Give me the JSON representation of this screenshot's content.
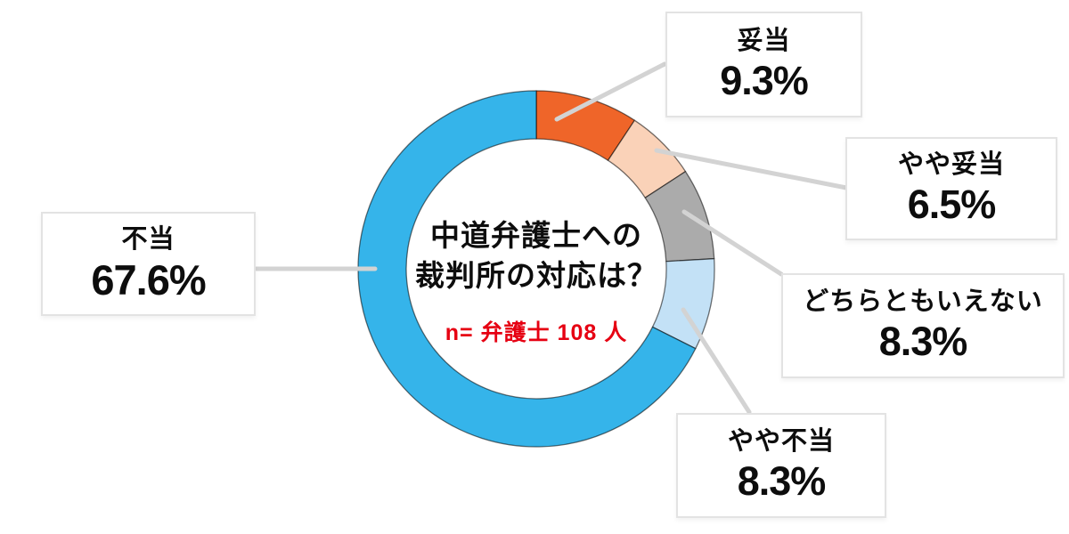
{
  "center": {
    "title_line1": "中道弁護士への",
    "title_line2": "裁判所の対応は？",
    "sample_note": "n= 弁護士 108 人"
  },
  "chart_data": {
    "type": "pie",
    "subtype": "donut",
    "title": "中道弁護士への裁判所の対応は？",
    "sample_note": "n= 弁護士 108 人",
    "categories": [
      "妥当",
      "やや妥当",
      "どちらともいえない",
      "やや不当",
      "不当"
    ],
    "values": [
      9.3,
      6.5,
      8.3,
      8.3,
      67.6
    ],
    "unit": "%",
    "colors": [
      "#EF6529",
      "#FAD2B8",
      "#ABABAB",
      "#C3E1F6",
      "#35B4EA"
    ],
    "start_angle_deg": 0,
    "direction": "clockwise",
    "legend_position": "callout-boxes",
    "labels": [
      {
        "name": "妥当",
        "percent": "9.3%"
      },
      {
        "name": "やや妥当",
        "percent": "6.5%"
      },
      {
        "name": "どちらともいえない",
        "percent": "8.3%"
      },
      {
        "name": "やや不当",
        "percent": "8.3%"
      },
      {
        "name": "不当",
        "percent": "67.6%"
      }
    ]
  },
  "styles": {
    "background": "#FFFFFF",
    "text_color": "#0D0D0D",
    "note_color": "#E60012",
    "box_border": "#E3E3E3",
    "leader_line_color": "#D3D3D3",
    "segment_outline": "rgba(0,0,0,0.55)"
  }
}
